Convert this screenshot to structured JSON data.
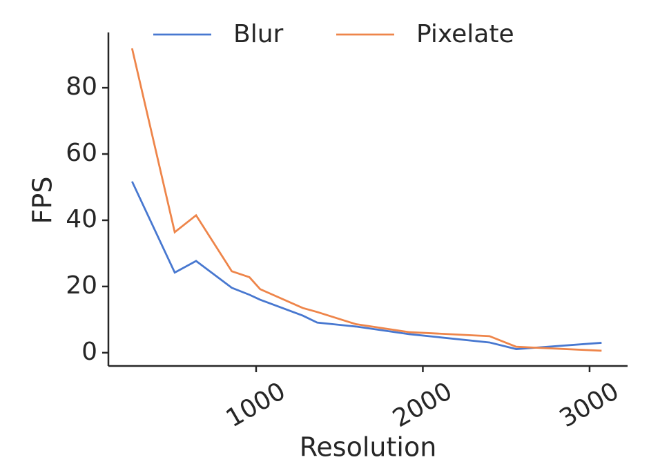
{
  "chart_data": {
    "type": "line",
    "x_label": "Resolution",
    "y_label": "FPS",
    "x": [
      256,
      512,
      640,
      854,
      960,
      1024,
      1280,
      1366,
      1600,
      1920,
      2400,
      2560,
      3072
    ],
    "series": [
      {
        "name": "Blur",
        "color": "#4878d0",
        "values": [
          51.7,
          24.2,
          27.7,
          19.6,
          17.5,
          16,
          11.2,
          9.1,
          7.9,
          5.6,
          3.1,
          1.1,
          3.0
        ]
      },
      {
        "name": "Pixelate",
        "color": "#ee854a",
        "values": [
          91.9,
          36.4,
          41.5,
          24.6,
          22.8,
          19.2,
          13.5,
          12.3,
          8.6,
          6.2,
          5.0,
          1.8,
          0.6
        ]
      }
    ],
    "xlim": [
      114,
      3228
    ],
    "ylim": [
      -4,
      96.7
    ],
    "xticks": [
      1000,
      2000,
      3000
    ],
    "yticks": [
      0,
      20,
      40,
      60,
      80
    ],
    "legend": "upper center"
  }
}
